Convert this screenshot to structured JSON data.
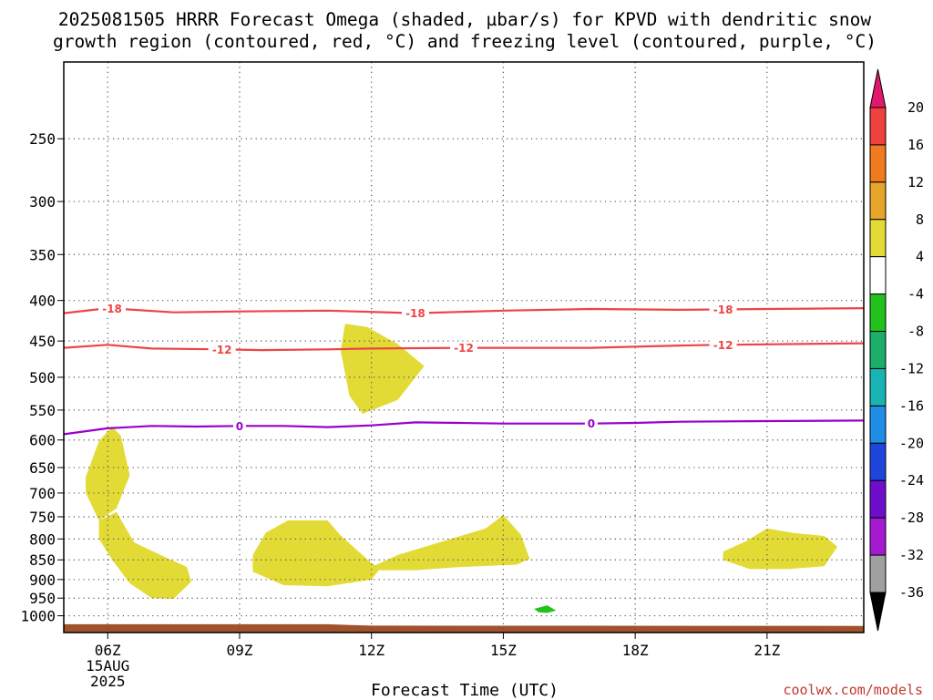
{
  "title_line1": "2025081505 HRRR Forecast Omega (shaded, µbar/s) for KPVD with dendritic snow",
  "title_line2": "growth region (contoured, red, °C) and freezing level (contoured, purple, °C)",
  "xlabel": "Forecast Time (UTC)",
  "credit": "coolwx.com/models",
  "chart_data": {
    "type": "heatmap",
    "x_unit": "forecast hour (UTC)",
    "y_unit": "pressure (hPa)",
    "xlim": [
      5,
      23.2
    ],
    "ylim": [
      1050,
      200
    ],
    "x_ticks": [
      {
        "x": 6,
        "label": "06Z",
        "sub": [
          "15AUG",
          "2025"
        ]
      },
      {
        "x": 9,
        "label": "09Z"
      },
      {
        "x": 12,
        "label": "12Z"
      },
      {
        "x": 15,
        "label": "15Z"
      },
      {
        "x": 18,
        "label": "18Z"
      },
      {
        "x": 21,
        "label": "21Z"
      }
    ],
    "y_ticks": [
      250,
      300,
      350,
      400,
      450,
      500,
      550,
      600,
      650,
      700,
      750,
      800,
      850,
      900,
      950,
      1000
    ],
    "grid": true,
    "surface": {
      "color": "#a0522d",
      "points": [
        [
          5,
          1025
        ],
        [
          11,
          1025
        ],
        [
          12,
          1029
        ],
        [
          23.2,
          1030
        ]
      ]
    },
    "omega_regions": [
      {
        "color": "#e3db35",
        "points": [
          [
            11.4,
            428
          ],
          [
            11.3,
            463
          ],
          [
            11.5,
            528
          ],
          [
            11.8,
            556
          ],
          [
            12.6,
            534
          ],
          [
            13.2,
            484
          ],
          [
            12.6,
            454
          ],
          [
            11.9,
            432
          ]
        ]
      },
      {
        "color": "#e3db35",
        "points": [
          [
            5.5,
            668
          ],
          [
            5.5,
            700
          ],
          [
            5.8,
            758
          ],
          [
            6.2,
            732
          ],
          [
            6.5,
            665
          ],
          [
            6.3,
            593
          ],
          [
            6.1,
            577
          ],
          [
            5.8,
            602
          ]
        ]
      },
      {
        "color": "#e3db35",
        "points": [
          [
            5.8,
            758
          ],
          [
            6.2,
            740
          ],
          [
            6.6,
            808
          ],
          [
            7.2,
            838
          ],
          [
            7.8,
            868
          ],
          [
            7.9,
            906
          ],
          [
            7.5,
            952
          ],
          [
            7.0,
            950
          ],
          [
            6.5,
            910
          ],
          [
            6.1,
            850
          ],
          [
            5.8,
            800
          ]
        ]
      },
      {
        "color": "#e3db35",
        "points": [
          [
            9.3,
            838
          ],
          [
            9.6,
            785
          ],
          [
            10.1,
            758
          ],
          [
            11.0,
            758
          ],
          [
            11.3,
            792
          ],
          [
            12.0,
            858
          ],
          [
            12.2,
            872
          ],
          [
            12.0,
            900
          ],
          [
            11.0,
            918
          ],
          [
            10.0,
            915
          ],
          [
            9.3,
            880
          ]
        ]
      },
      {
        "color": "#e3db35",
        "points": [
          [
            12.0,
            868
          ],
          [
            12.6,
            838
          ],
          [
            13.6,
            806
          ],
          [
            14.6,
            776
          ],
          [
            15.0,
            746
          ],
          [
            15.4,
            790
          ],
          [
            15.6,
            848
          ],
          [
            15.3,
            862
          ],
          [
            14.0,
            868
          ],
          [
            13.0,
            876
          ],
          [
            12.2,
            876
          ]
        ]
      },
      {
        "color": "#e3db35",
        "points": [
          [
            20.0,
            830
          ],
          [
            20.5,
            806
          ],
          [
            21.0,
            776
          ],
          [
            21.6,
            786
          ],
          [
            22.3,
            793
          ],
          [
            22.6,
            818
          ],
          [
            22.3,
            866
          ],
          [
            21.5,
            873
          ],
          [
            20.6,
            873
          ],
          [
            20.0,
            850
          ]
        ]
      },
      {
        "color": "#22c21c",
        "points": [
          [
            15.7,
            980
          ],
          [
            16.0,
            970
          ],
          [
            16.2,
            985
          ],
          [
            16.0,
            992
          ],
          [
            15.8,
            990
          ]
        ]
      }
    ],
    "contours": [
      {
        "name": "-18",
        "color": "#ee4444",
        "label_x": [
          6.1,
          13.0,
          20.0
        ],
        "points": [
          [
            5.0,
            415
          ],
          [
            6.0,
            409
          ],
          [
            7.5,
            414
          ],
          [
            9.0,
            413
          ],
          [
            11.0,
            412
          ],
          [
            13.0,
            415
          ],
          [
            15.0,
            412
          ],
          [
            17.0,
            410
          ],
          [
            19.0,
            411
          ],
          [
            21.0,
            410
          ],
          [
            23.2,
            409
          ]
        ]
      },
      {
        "name": "-12",
        "color": "#ee4444",
        "label_x": [
          8.6,
          14.1,
          20.0
        ],
        "points": [
          [
            5.0,
            459
          ],
          [
            6.0,
            455
          ],
          [
            7.0,
            460
          ],
          [
            8.6,
            461
          ],
          [
            9.5,
            462
          ],
          [
            11.0,
            461
          ],
          [
            12.0,
            460
          ],
          [
            14.1,
            459
          ],
          [
            17.0,
            459
          ],
          [
            19.0,
            456
          ],
          [
            20.0,
            455
          ],
          [
            23.2,
            453
          ]
        ]
      },
      {
        "name": "0",
        "color": "#9900cc",
        "label_x": [
          9.0,
          17.0
        ],
        "points": [
          [
            5.0,
            590
          ],
          [
            6.0,
            580
          ],
          [
            7.0,
            576
          ],
          [
            8.0,
            577
          ],
          [
            9.0,
            576
          ],
          [
            10.0,
            576
          ],
          [
            11.0,
            578
          ],
          [
            12.0,
            575
          ],
          [
            13.0,
            570
          ],
          [
            14.0,
            571
          ],
          [
            15.0,
            572
          ],
          [
            16.0,
            572
          ],
          [
            17.0,
            572
          ],
          [
            18.0,
            571
          ],
          [
            19.0,
            569
          ],
          [
            21.0,
            568
          ],
          [
            23.2,
            567
          ]
        ]
      }
    ],
    "colorbar": {
      "labels": [
        "20",
        "16",
        "12",
        "8",
        "4",
        "-4",
        "-8",
        "-12",
        "-16",
        "-20",
        "-24",
        "-28",
        "-32",
        "-36"
      ],
      "top_arrow_color": "#e0196f",
      "bottom_arrow_color": "#000000",
      "bins": [
        {
          "from": "20",
          "to": "16",
          "color": "#f04141"
        },
        {
          "from": "16",
          "to": "12",
          "color": "#f07a1e"
        },
        {
          "from": "12",
          "to": "8",
          "color": "#e7a42b"
        },
        {
          "from": "8",
          "to": "4",
          "color": "#e3db35"
        },
        {
          "from": "4",
          "to": "-4",
          "color": "#ffffff"
        },
        {
          "from": "-4",
          "to": "-8",
          "color": "#22c21c"
        },
        {
          "from": "-8",
          "to": "-12",
          "color": "#1aae6a"
        },
        {
          "from": "-12",
          "to": "-16",
          "color": "#18b4b4"
        },
        {
          "from": "-16",
          "to": "-20",
          "color": "#1e8fe6"
        },
        {
          "from": "-20",
          "to": "-24",
          "color": "#1e46dc"
        },
        {
          "from": "-24",
          "to": "-28",
          "color": "#6e0ecc"
        },
        {
          "from": "-28",
          "to": "-32",
          "color": "#a51ad0"
        },
        {
          "from": "-32",
          "to": "-36",
          "color": "#a0a0a0"
        }
      ]
    }
  }
}
